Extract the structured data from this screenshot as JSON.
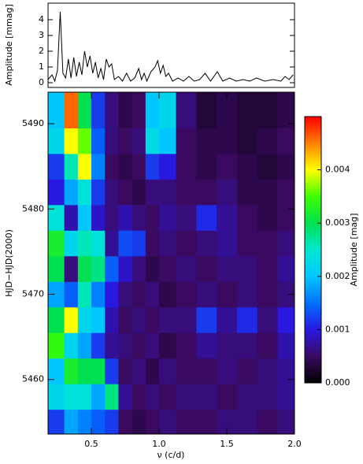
{
  "chart_data": [
    {
      "type": "line",
      "ylabel": "Amplitude [mmag]",
      "color": "#000000",
      "xlim": [
        0.18,
        2.0
      ],
      "ylim": [
        -0.3,
        5.05
      ],
      "yticks": [
        0,
        1,
        2,
        3,
        4
      ],
      "x": [
        0.18,
        0.21,
        0.23,
        0.25,
        0.27,
        0.29,
        0.31,
        0.33,
        0.35,
        0.37,
        0.39,
        0.41,
        0.43,
        0.45,
        0.47,
        0.49,
        0.51,
        0.53,
        0.55,
        0.57,
        0.59,
        0.61,
        0.63,
        0.65,
        0.67,
        0.7,
        0.73,
        0.76,
        0.79,
        0.82,
        0.85,
        0.87,
        0.89,
        0.91,
        0.94,
        0.97,
        0.99,
        1.01,
        1.03,
        1.05,
        1.07,
        1.1,
        1.14,
        1.18,
        1.22,
        1.26,
        1.3,
        1.34,
        1.38,
        1.43,
        1.47,
        1.52,
        1.57,
        1.62,
        1.67,
        1.72,
        1.78,
        1.84,
        1.9,
        1.93,
        1.96,
        1.99
      ],
      "values": [
        0.2,
        0.5,
        0.1,
        0.8,
        4.5,
        0.6,
        0.3,
        1.5,
        0.3,
        1.6,
        0.4,
        1.3,
        0.5,
        2.0,
        1.0,
        1.7,
        0.6,
        1.3,
        0.3,
        0.9,
        0.2,
        1.5,
        1.0,
        1.2,
        0.2,
        0.4,
        0.1,
        0.6,
        0.1,
        0.3,
        0.9,
        0.2,
        0.6,
        0.1,
        0.7,
        1.0,
        1.4,
        0.6,
        1.1,
        0.4,
        0.6,
        0.1,
        0.3,
        0.1,
        0.4,
        0.1,
        0.2,
        0.6,
        0.1,
        0.7,
        0.1,
        0.3,
        0.1,
        0.2,
        0.1,
        0.3,
        0.1,
        0.2,
        0.1,
        0.4,
        0.2,
        0.5
      ]
    },
    {
      "type": "heatmap",
      "xlabel": "ν (c/d)",
      "ylabel": "HJD−HJD(2000)",
      "zlabel": "Amplitude [mag]",
      "xlim": [
        0.18,
        2.0
      ],
      "ylim": [
        5453.6,
        5493.7
      ],
      "xticks": [
        0.5,
        {
          "value": 1.0,
          "label": "1.0"
        },
        1.5,
        {
          "value": 2.0,
          "label": "2.0"
        }
      ],
      "yticks": [
        5460,
        5470,
        5480,
        5490
      ],
      "zlim": [
        0,
        0.005
      ],
      "zticks": [
        {
          "value": 0,
          "label": "0.000"
        },
        {
          "value": 0.001,
          "label": "0.001"
        },
        {
          "value": 0.002,
          "label": "0.002"
        },
        {
          "value": 0.003,
          "label": "0.003"
        },
        {
          "value": 0.004,
          "label": "0.004"
        }
      ],
      "colormap": [
        "#000000",
        "#3a0a60",
        "#2818e0",
        "#0070ff",
        "#00c8ff",
        "#00e8d0",
        "#00e050",
        "#40ff00",
        "#ffff00",
        "#ff8000",
        "#ff0000"
      ],
      "x": [
        0.25,
        0.35,
        0.45,
        0.55,
        0.65,
        0.75,
        0.85,
        0.95,
        1.05,
        1.2,
        1.35,
        1.5,
        1.65,
        1.8,
        1.95
      ],
      "y": [
        5455,
        5458,
        5461,
        5464,
        5467,
        5470,
        5473,
        5476,
        5479,
        5482,
        5485,
        5488,
        5491
      ],
      "z": [
        [
          0.0012,
          0.0018,
          0.0016,
          0.0014,
          0.0012,
          0.0005,
          0.0004,
          0.0005,
          0.0006,
          0.0005,
          0.0005,
          0.0006,
          0.0006,
          0.0005,
          0.0006
        ],
        [
          0.0022,
          0.0024,
          0.0024,
          0.0018,
          0.0028,
          0.0007,
          0.0005,
          0.0006,
          0.0005,
          0.0006,
          0.0006,
          0.0005,
          0.0006,
          0.0006,
          0.0007
        ],
        [
          0.002,
          0.0032,
          0.003,
          0.003,
          0.0012,
          0.0005,
          0.0006,
          0.0004,
          0.0006,
          0.0005,
          0.0005,
          0.0006,
          0.0005,
          0.0006,
          0.0007
        ],
        [
          0.0034,
          0.0022,
          0.0018,
          0.0012,
          0.0007,
          0.0006,
          0.0005,
          0.0006,
          0.0004,
          0.0005,
          0.0007,
          0.0006,
          0.0006,
          0.0005,
          0.0008
        ],
        [
          0.003,
          0.004,
          0.0022,
          0.002,
          0.0008,
          0.0005,
          0.0006,
          0.0005,
          0.0006,
          0.0006,
          0.0012,
          0.0007,
          0.0011,
          0.0006,
          0.001
        ],
        [
          0.0018,
          0.0014,
          0.0026,
          0.0016,
          0.001,
          0.0006,
          0.0005,
          0.0006,
          0.0004,
          0.0005,
          0.0006,
          0.0005,
          0.0006,
          0.0005,
          0.0006
        ],
        [
          0.003,
          0.0006,
          0.003,
          0.0028,
          0.0014,
          0.0009,
          0.0006,
          0.0004,
          0.0005,
          0.0006,
          0.0005,
          0.0006,
          0.0006,
          0.0005,
          0.0007
        ],
        [
          0.0032,
          0.0022,
          0.0026,
          0.0024,
          0.0007,
          0.0013,
          0.0012,
          0.0005,
          0.0006,
          0.0005,
          0.0006,
          0.0007,
          0.0005,
          0.0005,
          0.0006
        ],
        [
          0.0024,
          0.0008,
          0.002,
          0.0009,
          0.0006,
          0.0008,
          0.0006,
          0.0005,
          0.0007,
          0.0006,
          0.0011,
          0.0007,
          0.0005,
          0.0004,
          0.0005
        ],
        [
          0.001,
          0.0018,
          0.0024,
          0.0012,
          0.0006,
          0.0005,
          0.0004,
          0.0006,
          0.0006,
          0.0005,
          0.0005,
          0.0006,
          0.0004,
          0.0004,
          0.0005
        ],
        [
          0.0012,
          0.0026,
          0.004,
          0.0016,
          0.0005,
          0.0004,
          0.0005,
          0.0012,
          0.001,
          0.0005,
          0.0004,
          0.0005,
          0.0004,
          0.0003,
          0.0004
        ],
        [
          0.0022,
          0.004,
          0.0036,
          0.0014,
          0.0006,
          0.0005,
          0.0006,
          0.0023,
          0.002,
          0.0005,
          0.0004,
          0.0004,
          0.0003,
          0.0004,
          0.0005
        ],
        [
          0.002,
          0.0046,
          0.003,
          0.0012,
          0.0006,
          0.0004,
          0.0005,
          0.002,
          0.0022,
          0.0006,
          0.0003,
          0.0004,
          0.0003,
          0.0003,
          0.0004
        ]
      ]
    }
  ]
}
